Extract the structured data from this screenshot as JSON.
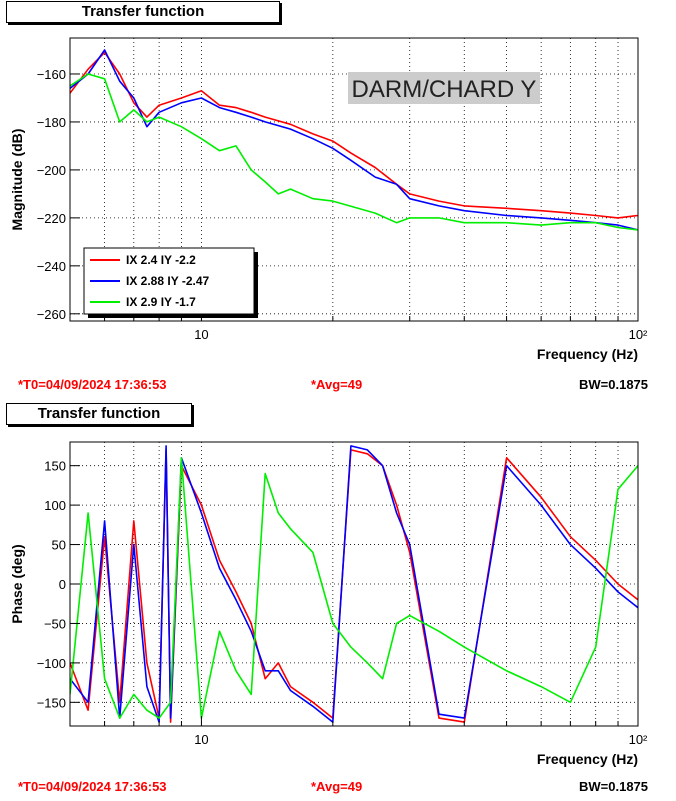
{
  "chart_data": [
    {
      "type": "line",
      "panel_title": "Transfer function",
      "annotation": "DARM/CHARD Y",
      "xlabel": "Frequency (Hz)",
      "ylabel": "Magnitude (dB)",
      "xscale": "log",
      "xlim": [
        5,
        100
      ],
      "ylim": [
        -263,
        -145
      ],
      "x_ticks": [
        {
          "value": 10,
          "label": "10"
        },
        {
          "value": 100,
          "label": "10²"
        }
      ],
      "y_ticks": [
        -160,
        -180,
        -200,
        -220,
        -240,
        -260
      ],
      "grid": true,
      "legend_position": "bottom-left",
      "series": [
        {
          "name": "IX 2.4 IY -2.2",
          "color": "#ff0000",
          "x": [
            5,
            5.5,
            6,
            6.5,
            7,
            7.5,
            8,
            9,
            10,
            11,
            12,
            13,
            14,
            16,
            18,
            20,
            22,
            25,
            28,
            30,
            35,
            40,
            50,
            60,
            70,
            80,
            90,
            100
          ],
          "y": [
            -168,
            -158,
            -151,
            -160,
            -172,
            -178,
            -173,
            -170,
            -167,
            -173,
            -174,
            -176,
            -178,
            -181,
            -185,
            -188,
            -193,
            -199,
            -206,
            -210,
            -213,
            -215,
            -216,
            -217,
            -218,
            -219,
            -220,
            -219
          ]
        },
        {
          "name": "IX 2.88 IY -2.47",
          "color": "#0000ff",
          "x": [
            5,
            5.5,
            6,
            6.5,
            7,
            7.5,
            8,
            9,
            10,
            11,
            12,
            13,
            14,
            16,
            18,
            20,
            22,
            25,
            28,
            30,
            35,
            40,
            50,
            60,
            70,
            80,
            90,
            100
          ],
          "y": [
            -166,
            -160,
            -150,
            -163,
            -170,
            -182,
            -176,
            -172,
            -170,
            -174,
            -176,
            -178,
            -180,
            -183,
            -187,
            -191,
            -196,
            -203,
            -206,
            -212,
            -215,
            -217,
            -219,
            -220,
            -221,
            -222,
            -223,
            -225
          ]
        },
        {
          "name": "IX 2.9 IY -1.7",
          "color": "#00ee00",
          "x": [
            5,
            5.5,
            6,
            6.5,
            7,
            7.5,
            8,
            9,
            10,
            11,
            12,
            13,
            14,
            15,
            16,
            18,
            20,
            25,
            28,
            30,
            35,
            40,
            50,
            60,
            70,
            80,
            90,
            100
          ],
          "y": [
            -165,
            -160,
            -162,
            -180,
            -175,
            -180,
            -178,
            -182,
            -187,
            -192,
            -190,
            -200,
            -205,
            -210,
            -208,
            -212,
            -213,
            -218,
            -222,
            -220,
            -220,
            -222,
            -222,
            -223,
            -222,
            -222,
            -224,
            -225
          ]
        }
      ]
    },
    {
      "type": "line",
      "panel_title": "Transfer function",
      "xlabel": "Frequency (Hz)",
      "ylabel": "Phase (deg)",
      "xscale": "log",
      "xlim": [
        5,
        100
      ],
      "ylim": [
        -180,
        180
      ],
      "x_ticks": [
        {
          "value": 10,
          "label": "10"
        },
        {
          "value": 100,
          "label": "10²"
        }
      ],
      "y_ticks": [
        150,
        100,
        50,
        0,
        -50,
        -100,
        -150
      ],
      "grid": true,
      "series": [
        {
          "name": "IX 2.4 IY -2.2",
          "color": "#ff0000",
          "x": [
            5,
            5.5,
            6,
            6.5,
            7,
            7.5,
            8,
            8.3,
            8.5,
            9,
            10,
            11,
            12,
            13,
            14,
            15,
            16,
            18,
            20,
            22,
            24,
            26,
            28,
            30,
            35,
            40,
            50,
            60,
            70,
            80,
            90,
            100
          ],
          "y": [
            -100,
            -160,
            60,
            -150,
            80,
            -100,
            -170,
            170,
            -175,
            150,
            100,
            30,
            -10,
            -50,
            -120,
            -100,
            -130,
            -150,
            -170,
            170,
            165,
            150,
            100,
            40,
            -170,
            -175,
            160,
            110,
            60,
            30,
            0,
            -20
          ]
        },
        {
          "name": "IX 2.88 IY -2.47",
          "color": "#0000ff",
          "x": [
            5,
            5.5,
            6,
            6.5,
            7,
            7.5,
            8,
            8.3,
            8.5,
            9,
            10,
            11,
            12,
            13,
            14,
            15,
            16,
            18,
            20,
            22,
            24,
            26,
            28,
            30,
            35,
            40,
            50,
            60,
            70,
            80,
            90,
            100
          ],
          "y": [
            -120,
            -150,
            80,
            -170,
            50,
            -130,
            -175,
            175,
            -170,
            160,
            90,
            20,
            -20,
            -60,
            -110,
            -110,
            -135,
            -155,
            -175,
            175,
            170,
            150,
            90,
            50,
            -165,
            -170,
            150,
            100,
            50,
            20,
            -10,
            -30
          ]
        },
        {
          "name": "IX 2.9 IY -1.7",
          "color": "#00ee00",
          "x": [
            5,
            5.5,
            6,
            6.5,
            7,
            7.5,
            8,
            8.5,
            9,
            10,
            11,
            12,
            13,
            14,
            15,
            16,
            18,
            20,
            22,
            24,
            26,
            28,
            30,
            35,
            40,
            50,
            60,
            70,
            80,
            90,
            100
          ],
          "y": [
            -140,
            90,
            -120,
            -170,
            -140,
            -160,
            -170,
            -150,
            160,
            -170,
            -60,
            -110,
            -140,
            140,
            90,
            70,
            40,
            -50,
            -80,
            -100,
            -120,
            -50,
            -40,
            -60,
            -80,
            -110,
            -130,
            -150,
            -80,
            120,
            150
          ]
        }
      ]
    }
  ],
  "panels": [
    {
      "title": "Transfer function",
      "footer": {
        "t0": "*T0=04/09/2024 17:36:53",
        "avg": "*Avg=49",
        "bw": "BW=0.1875"
      }
    },
    {
      "title": "Transfer function",
      "footer": {
        "t0": "*T0=04/09/2024 17:36:53",
        "avg": "*Avg=49",
        "bw": "BW=0.1875"
      }
    }
  ]
}
